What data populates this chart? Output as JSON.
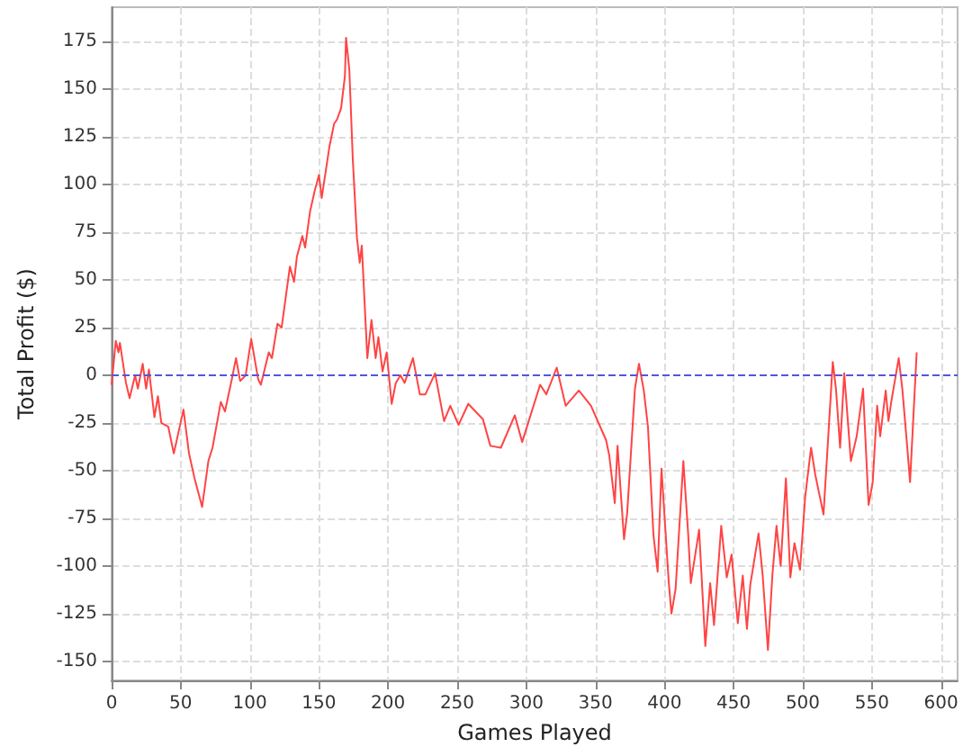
{
  "chart_data": {
    "type": "line",
    "xlabel": "Games Played",
    "ylabel": "Total Profit ($)",
    "xlim": [
      0,
      612
    ],
    "ylim": [
      -160,
      193
    ],
    "xticks": [
      0,
      50,
      100,
      150,
      200,
      250,
      300,
      350,
      400,
      450,
      500,
      550,
      600
    ],
    "yticks": [
      -150,
      -125,
      -100,
      -75,
      -50,
      -25,
      0,
      25,
      50,
      75,
      100,
      125,
      150,
      175
    ],
    "grid": true,
    "marker": "none",
    "line_style": "solid",
    "ref_lines": [
      {
        "axis": "y",
        "value": 0,
        "color": "#5555dd",
        "line_style": "dashed"
      }
    ],
    "series": [
      {
        "color": "#ff4444",
        "x": [
          0,
          3,
          5,
          6,
          10.4,
          13,
          17,
          19,
          22.5,
          25,
          27,
          31,
          33.5,
          36,
          41,
          45,
          52,
          56,
          60,
          65.5,
          70,
          73,
          79,
          82,
          87,
          90,
          93,
          97,
          101,
          106,
          108,
          113.7,
          116,
          120,
          123,
          129,
          132,
          134,
          138,
          140,
          143.6,
          147,
          150,
          152,
          157.6,
          161,
          163,
          166,
          168.8,
          169.6,
          172,
          174.5,
          177.5,
          179.5,
          181,
          185,
          188,
          191,
          193,
          196,
          199,
          202.6,
          205.6,
          209,
          212,
          218,
          223,
          227,
          234,
          240.5,
          245,
          251,
          258,
          268.6,
          274,
          281.6,
          291.7,
          297,
          310,
          314.5,
          322,
          328.5,
          338,
          346.8,
          357.7,
          360,
          364,
          366,
          370.7,
          373,
          378.6,
          381.5,
          385,
          388,
          392,
          395,
          397.8,
          403,
          405,
          408,
          413.6,
          417,
          419,
          425,
          429.5,
          433,
          435.8,
          441,
          445,
          448.5,
          453,
          456.6,
          459.6,
          462,
          468,
          471,
          474.8,
          478,
          481,
          484,
          487.8,
          491,
          494,
          498,
          501.7,
          506,
          509,
          515,
          521.7,
          524,
          527,
          530,
          534.8,
          539,
          543.6,
          547.6,
          550.6,
          553.8,
          556,
          560,
          562,
          564,
          569.4,
          572,
          575.5,
          577.6,
          582.4
        ],
        "values": [
          -5,
          18,
          12,
          17,
          -4,
          -12,
          0,
          -7,
          6,
          -7,
          3,
          -22,
          -11,
          -25,
          -27,
          -41,
          -18,
          -41,
          -54,
          -69,
          -45,
          -38,
          -14,
          -19,
          -2,
          9,
          -3,
          0,
          19,
          -2,
          -5,
          12,
          9,
          27,
          25,
          57,
          49,
          62,
          73,
          67,
          86,
          97,
          105,
          93,
          120,
          132,
          134,
          140,
          157,
          177,
          160,
          113,
          72,
          59,
          68,
          9,
          29,
          9,
          20,
          2,
          12,
          -15,
          -4,
          0,
          -4,
          9,
          -10,
          -10,
          1,
          -24,
          -16,
          -26,
          -15,
          -23,
          -37,
          -38,
          -21,
          -35,
          -5,
          -10,
          4,
          -16,
          -8,
          -16,
          -34,
          -42,
          -67,
          -37,
          -86,
          -72,
          -7,
          6,
          -8,
          -27,
          -84,
          -103,
          -49,
          -108,
          -125,
          -112,
          -45,
          -82,
          -109,
          -81,
          -142,
          -109,
          -131,
          -79,
          -106,
          -94,
          -130,
          -105,
          -133,
          -110,
          -83,
          -105,
          -144,
          -105,
          -79,
          -100,
          -54,
          -106,
          -88,
          -102,
          -64,
          -38,
          -52,
          -73,
          7,
          -7,
          -38,
          1,
          -45,
          -32,
          -7,
          -68,
          -56,
          -16,
          -32,
          -8,
          -24,
          -14,
          9,
          -7,
          -37,
          -56,
          12
        ]
      }
    ]
  }
}
